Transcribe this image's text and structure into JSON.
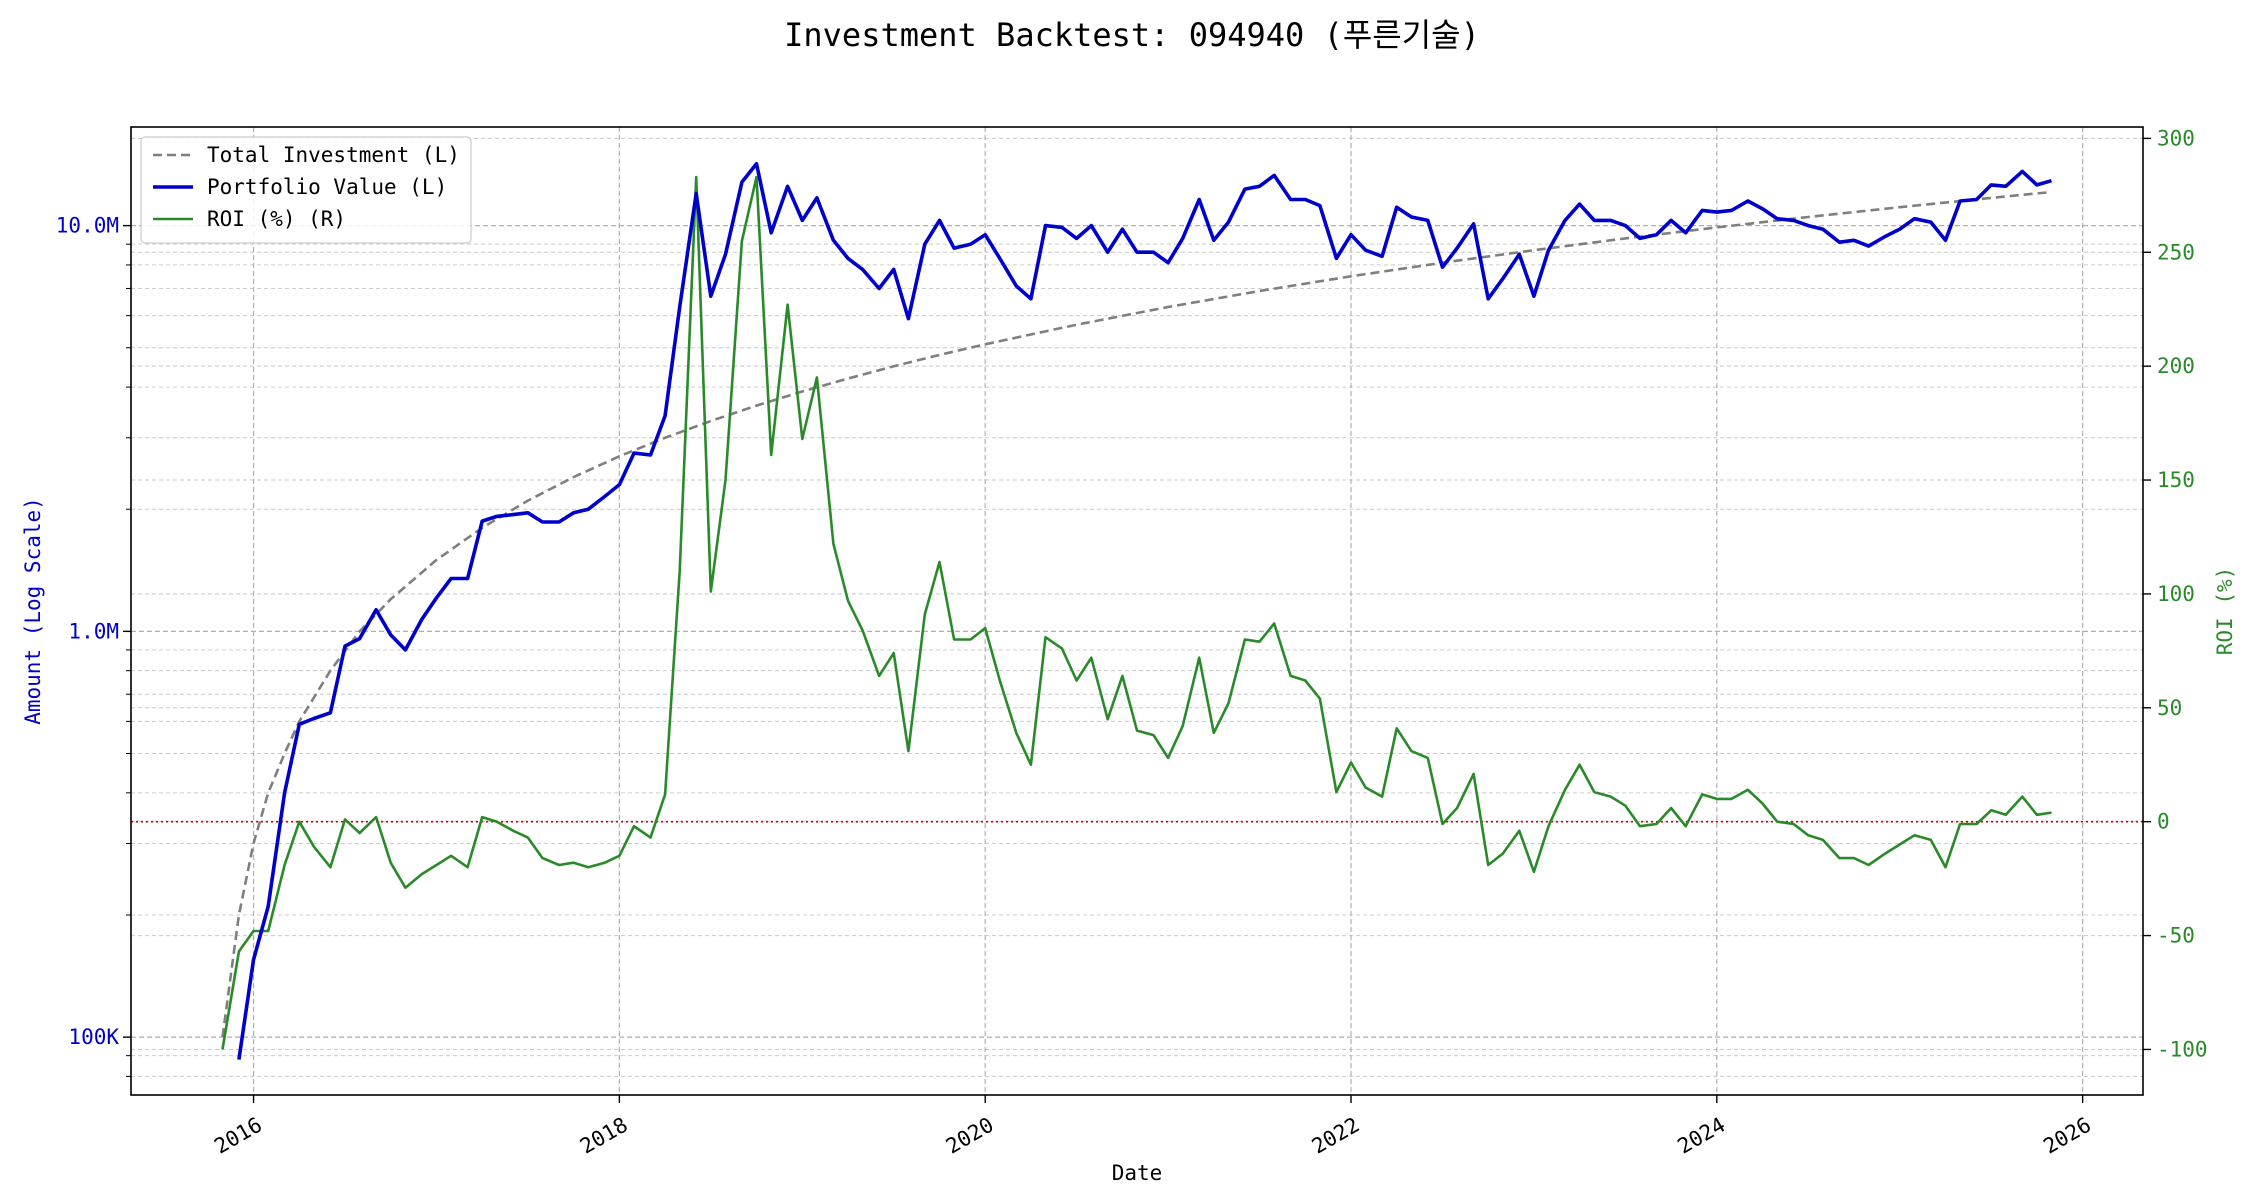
{
  "chart_data": {
    "type": "line",
    "title": "Investment Backtest: 094940 (푸른기술)",
    "xlabel": "Date",
    "ylabel_left": "Amount (Log Scale)",
    "ylabel_right": "ROI (%)",
    "x_ticks": [
      "2016",
      "2018",
      "2020",
      "2022",
      "2024",
      "2026"
    ],
    "xlim": [
      2015.33,
      2026.33
    ],
    "y_left_scale": "log",
    "y_left_ticks": [
      {
        "value": 100000,
        "label": "100K"
      },
      {
        "value": 1000000,
        "label": "1.0M"
      },
      {
        "value": 10000000,
        "label": "10.0M"
      }
    ],
    "ylim_left": [
      72000,
      17500000
    ],
    "y_right_ticks": [
      -100,
      -50,
      0,
      50,
      100,
      150,
      200,
      250,
      300
    ],
    "ylim_right": [
      -120,
      305
    ],
    "grid": true,
    "legend_position": "top-left",
    "legend": [
      "Total Investment (L)",
      "Portfolio Value (L)",
      "ROI (%) (R)"
    ],
    "colors": {
      "investment": "#7f7f7f",
      "portfolio": "#0000cc",
      "roi": "#2a8a2a",
      "zero_line": "#cc0000"
    },
    "series": [
      {
        "name": "Total Investment (L)",
        "axis": "left",
        "style": "dashed",
        "x": [
          2015.83,
          2015.92,
          2016.0,
          2016.08,
          2016.17,
          2016.25,
          2016.42,
          2016.58,
          2016.75,
          2017.0,
          2017.25,
          2017.5,
          2017.75,
          2018.0,
          2018.25,
          2018.5,
          2018.75,
          2019.0,
          2019.25,
          2019.5,
          2019.75,
          2020.0,
          2020.5,
          2021.0,
          2021.5,
          2022.0,
          2022.5,
          2023.0,
          2023.5,
          2024.0,
          2024.5,
          2025.0,
          2025.5,
          2025.83
        ],
        "values": [
          100000,
          200000,
          300000,
          400000,
          500000,
          600000,
          800000,
          1000000,
          1200000,
          1500000,
          1800000,
          2100000,
          2400000,
          2700000,
          3000000,
          3300000,
          3600000,
          3900000,
          4200000,
          4500000,
          4800000,
          5100000,
          5700000,
          6300000,
          6900000,
          7500000,
          8100000,
          8700000,
          9300000,
          9900000,
          10500000,
          11100000,
          11700000,
          12100000
        ]
      },
      {
        "name": "Portfolio Value (L)",
        "axis": "left",
        "style": "solid",
        "x": [
          2015.92,
          2016.0,
          2016.08,
          2016.17,
          2016.25,
          2016.33,
          2016.42,
          2016.5,
          2016.58,
          2016.67,
          2016.75,
          2016.83,
          2016.92,
          2017.0,
          2017.08,
          2017.17,
          2017.25,
          2017.33,
          2017.42,
          2017.5,
          2017.58,
          2017.67,
          2017.75,
          2017.83,
          2017.92,
          2018.0,
          2018.08,
          2018.17,
          2018.25,
          2018.33,
          2018.42,
          2018.5,
          2018.58,
          2018.67,
          2018.75,
          2018.83,
          2018.92,
          2019.0,
          2019.08,
          2019.17,
          2019.25,
          2019.33,
          2019.42,
          2019.5,
          2019.58,
          2019.67,
          2019.75,
          2019.83,
          2019.92,
          2020.0,
          2020.08,
          2020.17,
          2020.25,
          2020.33,
          2020.42,
          2020.5,
          2020.58,
          2020.67,
          2020.75,
          2020.83,
          2020.92,
          2021.0,
          2021.08,
          2021.17,
          2021.25,
          2021.33,
          2021.42,
          2021.5,
          2021.58,
          2021.67,
          2021.75,
          2021.83,
          2021.92,
          2022.0,
          2022.08,
          2022.17,
          2022.25,
          2022.33,
          2022.42,
          2022.5,
          2022.58,
          2022.67,
          2022.75,
          2022.83,
          2022.92,
          2023.0,
          2023.08,
          2023.17,
          2023.25,
          2023.33,
          2023.42,
          2023.5,
          2023.58,
          2023.67,
          2023.75,
          2023.83,
          2023.92,
          2024.0,
          2024.08,
          2024.17,
          2024.25,
          2024.33,
          2024.42,
          2024.5,
          2024.58,
          2024.67,
          2024.75,
          2024.83,
          2024.92,
          2025.0,
          2025.08,
          2025.17,
          2025.25,
          2025.33,
          2025.42,
          2025.5,
          2025.58,
          2025.67,
          2025.75,
          2025.83
        ],
        "values": [
          88000,
          155000,
          210000,
          400000,
          590000,
          610000,
          630000,
          920000,
          960000,
          1130000,
          980000,
          900000,
          1070000,
          1210000,
          1350000,
          1350000,
          1870000,
          1920000,
          1940000,
          1960000,
          1860000,
          1860000,
          1960000,
          2000000,
          2150000,
          2300000,
          2750000,
          2720000,
          3400000,
          6300000,
          12000000,
          6700000,
          8500000,
          12800000,
          14200000,
          9600000,
          12500000,
          10300000,
          11700000,
          9200000,
          8300000,
          7800000,
          7000000,
          7800000,
          5900000,
          9000000,
          10300000,
          8800000,
          9000000,
          9500000,
          8300000,
          7100000,
          6600000,
          10000000,
          9900000,
          9300000,
          10000000,
          8600000,
          9800000,
          8600000,
          8600000,
          8100000,
          9300000,
          11600000,
          9200000,
          10200000,
          12300000,
          12500000,
          13300000,
          11600000,
          11600000,
          11200000,
          8300000,
          9500000,
          8700000,
          8400000,
          11100000,
          10500000,
          10300000,
          7900000,
          8800000,
          10100000,
          6600000,
          7400000,
          8500000,
          6700000,
          8700000,
          10300000,
          11300000,
          10300000,
          10300000,
          10000000,
          9300000,
          9500000,
          10300000,
          9600000,
          10900000,
          10800000,
          10900000,
          11500000,
          11000000,
          10400000,
          10300000,
          10000000,
          9800000,
          9100000,
          9200000,
          8900000,
          9400000,
          9800000,
          10400000,
          10200000,
          9200000,
          11500000,
          11600000,
          12600000,
          12500000,
          13600000,
          12600000,
          12900000
        ]
      },
      {
        "name": "ROI (%) (R)",
        "axis": "right",
        "style": "solid",
        "x": [
          2015.83,
          2015.92,
          2016.0,
          2016.08,
          2016.17,
          2016.25,
          2016.33,
          2016.42,
          2016.5,
          2016.58,
          2016.67,
          2016.75,
          2016.83,
          2016.92,
          2017.0,
          2017.08,
          2017.17,
          2017.25,
          2017.33,
          2017.42,
          2017.5,
          2017.58,
          2017.67,
          2017.75,
          2017.83,
          2017.92,
          2018.0,
          2018.08,
          2018.17,
          2018.25,
          2018.33,
          2018.42,
          2018.5,
          2018.58,
          2018.67,
          2018.75,
          2018.83,
          2018.92,
          2019.0,
          2019.08,
          2019.17,
          2019.25,
          2019.33,
          2019.42,
          2019.5,
          2019.58,
          2019.67,
          2019.75,
          2019.83,
          2019.92,
          2020.0,
          2020.08,
          2020.17,
          2020.25,
          2020.33,
          2020.42,
          2020.5,
          2020.58,
          2020.67,
          2020.75,
          2020.83,
          2020.92,
          2021.0,
          2021.08,
          2021.17,
          2021.25,
          2021.33,
          2021.42,
          2021.5,
          2021.58,
          2021.67,
          2021.75,
          2021.83,
          2021.92,
          2022.0,
          2022.08,
          2022.17,
          2022.25,
          2022.33,
          2022.42,
          2022.5,
          2022.58,
          2022.67,
          2022.75,
          2022.83,
          2022.92,
          2023.0,
          2023.08,
          2023.17,
          2023.25,
          2023.33,
          2023.42,
          2023.5,
          2023.58,
          2023.67,
          2023.75,
          2023.83,
          2023.92,
          2024.0,
          2024.08,
          2024.17,
          2024.25,
          2024.33,
          2024.42,
          2024.5,
          2024.58,
          2024.67,
          2024.75,
          2024.83,
          2024.92,
          2025.0,
          2025.08,
          2025.17,
          2025.25,
          2025.33,
          2025.42,
          2025.5,
          2025.58,
          2025.67,
          2025.75,
          2025.83
        ],
        "values": [
          -100,
          -57,
          -48,
          -48,
          -19,
          0,
          -11,
          -20,
          1,
          -5,
          2,
          -18,
          -29,
          -23,
          -19,
          -15,
          -20,
          2,
          0,
          -4,
          -7,
          -16,
          -19,
          -18,
          -20,
          -18,
          -15,
          -2,
          -7,
          12,
          110,
          283,
          101,
          150,
          255,
          283,
          161,
          227,
          168,
          195,
          122,
          97,
          84,
          64,
          74,
          31,
          91,
          114,
          80,
          80,
          85,
          62,
          39,
          25,
          81,
          76,
          62,
          72,
          45,
          64,
          40,
          38,
          28,
          42,
          72,
          39,
          52,
          80,
          79,
          87,
          64,
          62,
          54,
          13,
          26,
          15,
          11,
          41,
          31,
          28,
          -1,
          6,
          21,
          -19,
          -14,
          -4,
          -22,
          -2,
          14,
          25,
          13,
          11,
          7,
          -2,
          -1,
          6,
          -2,
          12,
          10,
          10,
          14,
          8,
          0,
          -1,
          -6,
          -8,
          -16,
          -16,
          -19,
          -14,
          -10,
          -6,
          -8,
          -20,
          -1,
          -1,
          5,
          3,
          11,
          3,
          4
        ]
      },
      {
        "name": "",
        "axis": "right",
        "style": "dotted",
        "x": [
          2015.33,
          2026.33
        ],
        "values": [
          0,
          0
        ]
      }
    ]
  }
}
